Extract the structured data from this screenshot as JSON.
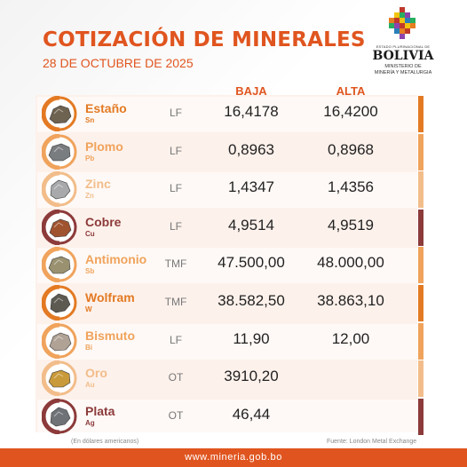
{
  "header": {
    "title": "COTIZACIÓN DE MINERALES",
    "date": "28 DE OCTUBRE DE 2025"
  },
  "logo": {
    "state": "ESTADO PLURINACIONAL DE",
    "country": "BOLIVIA",
    "ministry_line1": "MINISTERIO DE",
    "ministry_line2": "MINERÍA Y METALURGIA"
  },
  "columns": {
    "low": "BAJA",
    "high": "ALTA"
  },
  "minerals": [
    {
      "name": "Estaño",
      "symbol": "Sn",
      "unit": "LF",
      "low": "16,4178",
      "high": "16,4200",
      "color": "#e37a23",
      "icon": "tin-ore-icon"
    },
    {
      "name": "Plomo",
      "symbol": "Pb",
      "unit": "LF",
      "low": "0,8963",
      "high": "0,8968",
      "color": "#f0a35c",
      "icon": "lead-ore-icon"
    },
    {
      "name": "Zinc",
      "symbol": "Zn",
      "unit": "LF",
      "low": "1,4347",
      "high": "1,4356",
      "color": "#f2bd8a",
      "icon": "zinc-ore-icon"
    },
    {
      "name": "Cobre",
      "symbol": "Cu",
      "unit": "LF",
      "low": "4,9514",
      "high": "4,9519",
      "color": "#8c3a3a",
      "icon": "copper-ore-icon"
    },
    {
      "name": "Antimonio",
      "symbol": "Sb",
      "unit": "TMF",
      "low": "47.500,00",
      "high": "48.000,00",
      "color": "#f0a35c",
      "icon": "antimony-ore-icon"
    },
    {
      "name": "Wolfram",
      "symbol": "W",
      "unit": "TMF",
      "low": "38.582,50",
      "high": "38.863,10",
      "color": "#e37a23",
      "icon": "wolfram-ore-icon"
    },
    {
      "name": "Bismuto",
      "symbol": "Bi",
      "unit": "LF",
      "low": "11,90",
      "high": "12,00",
      "color": "#f0a35c",
      "icon": "bismuth-ore-icon"
    },
    {
      "name": "Oro",
      "symbol": "Au",
      "unit": "OT",
      "low": "3910,20",
      "high": "",
      "color": "#f2bd8a",
      "icon": "gold-ore-icon"
    },
    {
      "name": "Plata",
      "symbol": "Ag",
      "unit": "OT",
      "low": "46,44",
      "high": "",
      "color": "#8c3a3a",
      "icon": "silver-ore-icon"
    }
  ],
  "footnote_left": "(En dólares americanos)",
  "footnote_right": "Fuente: London Metal Exchange",
  "footer_url": "www.mineria.gob.bo"
}
